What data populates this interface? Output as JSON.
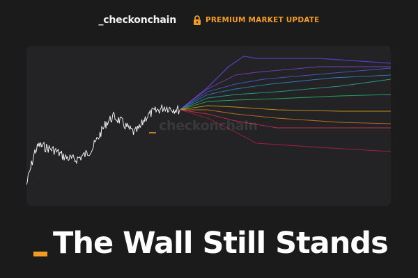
{
  "header": {
    "brand": "_checkonchain",
    "premium_label": "PREMIUM MARKET UPDATE",
    "lock_icon": "lock-icon",
    "accent_color": "#f29b25"
  },
  "chart": {
    "watermark": "checkonchain",
    "background": "#232325",
    "price_color": "#ffffff",
    "band_colors": [
      "#5b3fd6",
      "#7a46c9",
      "#4a5fd0",
      "#2f86c4",
      "#29a98e",
      "#27b86a",
      "#d49a1a",
      "#c77a1b",
      "#cf3150",
      "#b3213d",
      "#8e1e3a"
    ],
    "marker_color": "#f29b25"
  },
  "headline": {
    "text": "The Wall Still Stands",
    "cursor_color": "#f29b25"
  }
}
